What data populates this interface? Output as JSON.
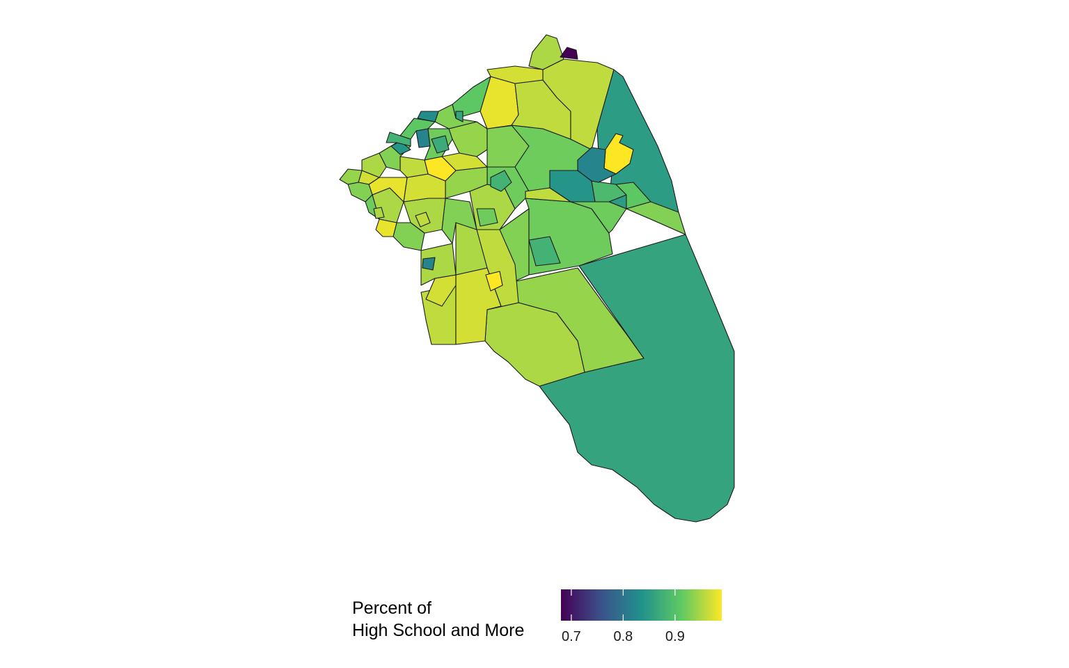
{
  "legend": {
    "title_line1": "Percent of",
    "title_line2": "High School and More",
    "min": 0.68,
    "max": 0.99,
    "ticks": [
      {
        "value": 0.7,
        "label": "0.7"
      },
      {
        "value": 0.8,
        "label": "0.8"
      },
      {
        "value": 0.9,
        "label": "0.9"
      }
    ],
    "palette": [
      "#440154",
      "#3b528b",
      "#21918c",
      "#5ec962",
      "#fde725"
    ]
  },
  "tract_values": [
    0.86,
    0.85,
    0.94,
    0.95,
    0.93,
    0.92,
    0.96,
    0.97,
    0.95,
    0.96,
    0.97,
    0.95,
    0.88,
    0.93,
    0.95,
    0.92,
    0.94,
    0.95,
    0.93,
    0.95,
    0.98,
    0.97,
    0.99,
    0.98,
    0.96,
    0.97,
    0.94,
    0.93,
    0.92,
    0.95,
    0.93,
    0.84,
    0.82,
    0.92,
    0.94,
    0.97,
    0.93,
    0.92,
    0.96,
    0.92,
    0.84,
    0.89,
    0.91,
    0.93,
    0.99,
    0.98,
    0.96,
    0.96,
    0.97,
    0.95,
    0.82,
    0.91,
    0.93,
    0.91,
    0.83,
    0.88,
    0.86,
    0.87,
    0.88,
    0.92,
    0.96,
    0.82,
    0.99,
    0.95,
    0.68
  ]
}
